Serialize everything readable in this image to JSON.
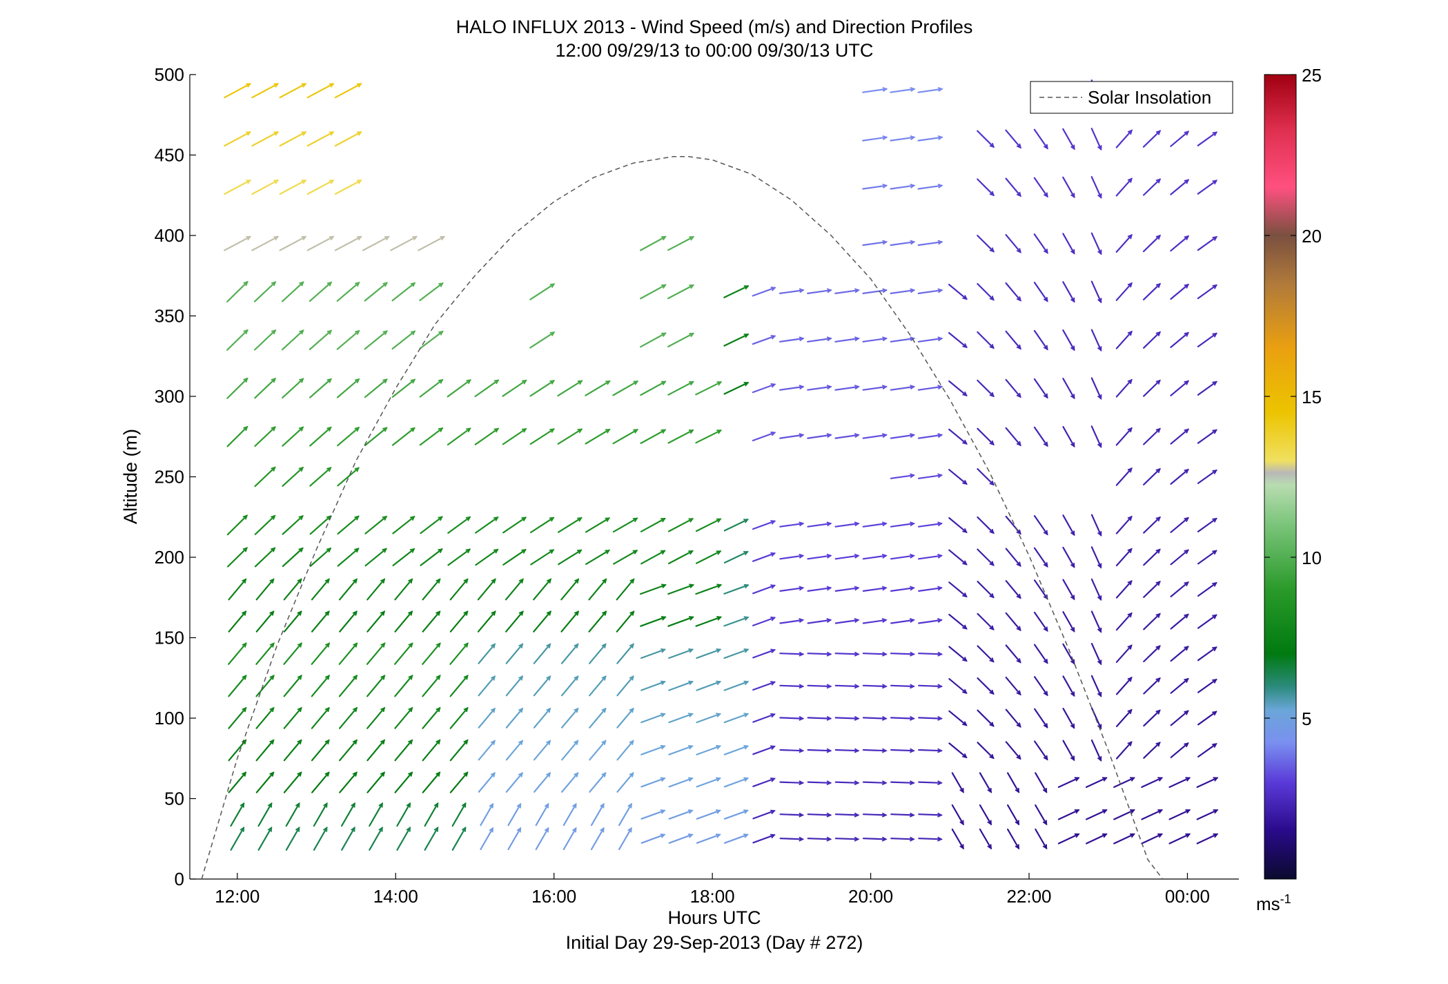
{
  "figure": {
    "title_line1": "HALO INFLUX 2013 - Wind Speed (m/s) and Direction Profiles",
    "title_line2": "12:00 09/29/13 to 00:00 09/30/13  UTC",
    "xlabel": "Hours UTC",
    "xlabel2": "Initial Day 29-Sep-2013 (Day # 272)",
    "ylabel": "Altitude (m)",
    "legend_label": "Solar Insolation",
    "colorbar_unit": "ms",
    "colorbar_unit_exp": "-1"
  },
  "chart_data": {
    "type": "scatter",
    "subtype": "wind-barb-quiver",
    "title": "HALO INFLUX 2013 - Wind Speed (m/s) and Direction Profiles",
    "subtitle": "12:00 09/29/13 to 00:00 09/30/13  UTC",
    "xlabel": "Hours UTC",
    "ylabel": "Altitude (m)",
    "xlim_hours": [
      11.4,
      24.65
    ],
    "ylim": [
      0,
      500
    ],
    "x_ticks": [
      12,
      14,
      16,
      18,
      20,
      22,
      24
    ],
    "x_tick_labels": [
      "12:00",
      "14:00",
      "16:00",
      "18:00",
      "20:00",
      "22:00",
      "00:00"
    ],
    "y_ticks": [
      0,
      50,
      100,
      150,
      200,
      250,
      300,
      350,
      400,
      450,
      500
    ],
    "colorbar": {
      "label": "ms-1",
      "range": [
        0,
        25
      ],
      "ticks": [
        5,
        10,
        15,
        20,
        25
      ]
    },
    "legend": {
      "position": "top-right",
      "entries": [
        "Solar Insolation"
      ]
    },
    "series": [
      {
        "name": "Solar Insolation",
        "kind": "dashed-curve",
        "x": [
          11.55,
          12,
          12.5,
          13,
          13.5,
          14,
          14.5,
          15,
          15.5,
          16,
          16.5,
          17,
          17.5,
          17.7,
          18,
          18.5,
          19,
          19.5,
          20,
          20.5,
          21,
          21.5,
          22,
          22.5,
          23,
          23.5,
          24,
          24.05
        ],
        "y": [
          0,
          75,
          145,
          205,
          260,
          305,
          345,
          375,
          401,
          421,
          436,
          445,
          449,
          449,
          447,
          438,
          422,
          400,
          373,
          338,
          298,
          253,
          201,
          143,
          80,
          12,
          -20,
          -20
        ]
      }
    ],
    "wind_field": {
      "description": "Arrows at each time/altitude cell; direction shows wind direction, color shows speed (m/s)",
      "times_hours": [
        12.0,
        12.35,
        12.7,
        13.05,
        13.4,
        13.75,
        14.1,
        14.45,
        14.8,
        15.15,
        15.5,
        15.85,
        16.2,
        16.55,
        16.9,
        17.25,
        17.6,
        17.95,
        18.3,
        18.65,
        19.0,
        19.35,
        19.7,
        20.05,
        20.4,
        20.75,
        21.1,
        21.45,
        21.8,
        22.15,
        22.5,
        22.85,
        23.2,
        23.55,
        23.9,
        24.25
      ],
      "altitudes_m": [
        25,
        40,
        60,
        80,
        100,
        120,
        140,
        160,
        180,
        200,
        220,
        250,
        275,
        305,
        335,
        365,
        395,
        430,
        460,
        490
      ],
      "speed_summary": {
        "upper_early_afternoon": "12-14 m/s",
        "midlevel_12_to_18": "6-10 m/s",
        "evening_below_200m": "2-5 m/s",
        "late_evening": "1-3 m/s"
      }
    }
  }
}
